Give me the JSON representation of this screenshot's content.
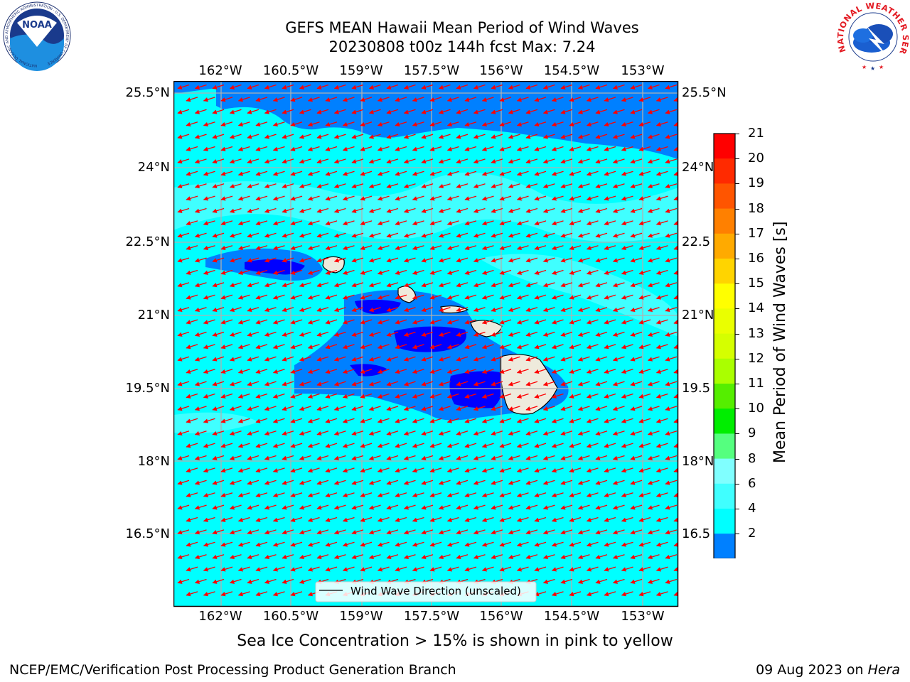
{
  "title": {
    "line1": "GEFS MEAN Hawaii Mean Period of Wind Waves",
    "line2": "20230808 t00z 144h fcst   Max: 7.24"
  },
  "map": {
    "lon_labels": [
      "162°W",
      "160.5°W",
      "159°W",
      "157.5°W",
      "156°W",
      "154.5°W",
      "153°W"
    ],
    "lat_labels": [
      "25.5°N",
      "24°N",
      "22.5°N",
      "21°N",
      "19.5°N",
      "18°N",
      "16.5°N"
    ],
    "lat_labels_right": [
      "25.5°N",
      "24°N",
      "22.5",
      "21°N",
      "19.5",
      "18°N",
      "16.5"
    ],
    "legend_label": "Wind Wave Direction (unscaled)",
    "colors": {
      "ocean_main": "#00ffff",
      "ocean_light": "#40ffff",
      "level_2_4": "#0080ff",
      "level_below_2": "#0000ff",
      "land": "#eeeadc",
      "arrows": "#ff0000",
      "grid": "#b0b0b0"
    }
  },
  "colorbar": {
    "title": "Mean Period of Wind Waves [s]",
    "ticks": [
      "21",
      "20",
      "19",
      "18",
      "17",
      "16",
      "15",
      "14",
      "13",
      "12",
      "11",
      "10",
      "9",
      "8",
      "6",
      "4",
      "2"
    ],
    "colors": [
      "#ff0000",
      "#ff2a00",
      "#ff5500",
      "#ff8000",
      "#ffaa00",
      "#ffd400",
      "#ffff00",
      "#eaff00",
      "#d5ff00",
      "#aaff00",
      "#55ee00",
      "#00ee00",
      "#55ff7f",
      "#80ffff",
      "#40ffff",
      "#00ffff",
      "#0080ff"
    ],
    "extend_color": "#0000ff"
  },
  "ice_note": "Sea Ice Concentration > 15% is shown in pink to yellow",
  "footer": {
    "left": "NCEP/EMC/Verification Post Processing Product Generation Branch",
    "right_date": "09 Aug 2023 on ",
    "right_host": "Hera"
  },
  "logos": {
    "noaa": "NOAA",
    "noaa_ring": "NATIONAL OCEANIC AND ATMOSPHERIC ADMINISTRATION · U.S. DEPARTMENT OF COMMERCE",
    "nws_ring": "NATIONAL WEATHER SERVICE"
  }
}
